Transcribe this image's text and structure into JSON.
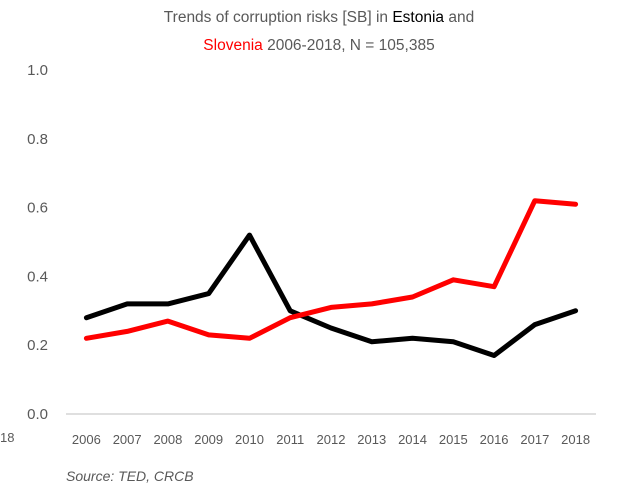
{
  "title": {
    "line1_prefix": "Trends of corruption risks [SB] in ",
    "line1_country": "Estonia",
    "line1_suffix": " and",
    "line2_country": "Slovenia",
    "line2_suffix": " 2006-2018, N = 105,385"
  },
  "source": "Source: TED, CRCB",
  "edge_fragment": "18",
  "colors": {
    "estonia": "#000000",
    "slovenia": "#ff0000",
    "axis": "#bfbfbf",
    "text": "#595959"
  },
  "chart_data": {
    "type": "line",
    "title": "Trends of corruption risks [SB] in Estonia and Slovenia 2006-2018, N = 105,385",
    "categories": [
      "2006",
      "2007",
      "2008",
      "2009",
      "2010",
      "2011",
      "2012",
      "2013",
      "2014",
      "2015",
      "2016",
      "2017",
      "2018"
    ],
    "ylim": [
      0,
      1.0
    ],
    "yticks": [
      "0.0",
      "0.2",
      "0.4",
      "0.6",
      "0.8",
      "1.0"
    ],
    "grid": false,
    "series": [
      {
        "name": "Estonia",
        "color": "#000000",
        "values": [
          0.28,
          0.32,
          0.32,
          0.35,
          0.52,
          0.3,
          0.25,
          0.21,
          0.22,
          0.21,
          0.17,
          0.26,
          0.3
        ]
      },
      {
        "name": "Slovenia",
        "color": "#ff0000",
        "values": [
          0.22,
          0.24,
          0.27,
          0.23,
          0.22,
          0.28,
          0.31,
          0.32,
          0.34,
          0.39,
          0.37,
          0.62,
          0.61
        ]
      }
    ]
  }
}
